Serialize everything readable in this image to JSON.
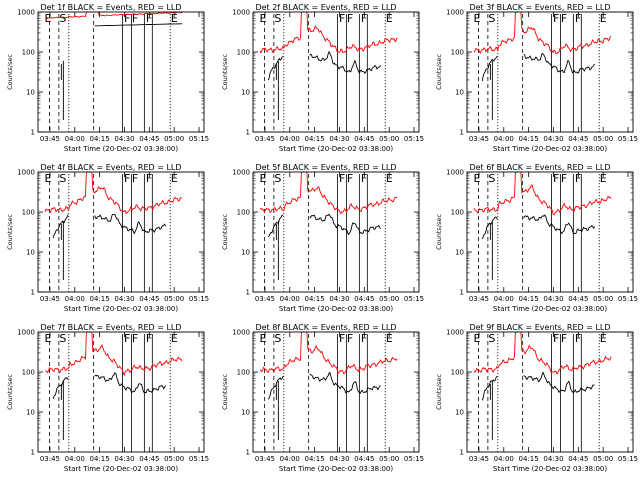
{
  "figure": {
    "ylabel": "Counts/sec",
    "xlabel": "Start Time (20-Dec-02 03:38:00)",
    "legend": "BLACK = Events, RED = LLD",
    "colors": {
      "events": "#000000",
      "lld": "#ff0000"
    }
  },
  "chart_data": [
    {
      "type": "line",
      "title": "Det 1f BLACK = Events, RED = LLD",
      "detector": "1f",
      "ylabel": "Counts/sec",
      "xlabel": "Start Time (20-Dec-02 03:38:00)",
      "yscale": "log",
      "ylim": [
        1,
        1000
      ],
      "yticks": [
        "1",
        "10",
        "100",
        "1000"
      ],
      "xlim": [
        3.63,
        5.3
      ],
      "xticks": [
        "03:45",
        "04:00",
        "04:15",
        "04:30",
        "04:45",
        "05:00",
        "05:15"
      ],
      "markers": [
        "E",
        "S",
        "F",
        "F",
        "F",
        "E"
      ],
      "series": [
        {
          "name": "Events",
          "color": "#000000"
        },
        {
          "name": "LLD",
          "color": "#ff0000"
        }
      ]
    },
    {
      "type": "line",
      "title": "Det 2f BLACK = Events, RED = LLD",
      "detector": "2f",
      "ylabel": "Counts/sec",
      "xlabel": "Start Time (20-Dec-02 03:38:00)",
      "yscale": "log",
      "ylim": [
        1,
        1000
      ],
      "yticks": [
        "1",
        "10",
        "100",
        "1000"
      ],
      "xlim": [
        3.63,
        5.3
      ],
      "xticks": [
        "03:45",
        "04:00",
        "04:15",
        "04:30",
        "04:45",
        "05:00",
        "05:15"
      ],
      "markers": [
        "E",
        "S",
        "F",
        "F",
        "F",
        "E"
      ],
      "series": [
        {
          "name": "Events",
          "color": "#000000"
        },
        {
          "name": "LLD",
          "color": "#ff0000"
        }
      ]
    },
    {
      "type": "line",
      "title": "Det 3f BLACK = Events, RED = LLD",
      "detector": "3f",
      "ylabel": "Counts/sec",
      "xlabel": "Start Time (20-Dec-02 03:38:00)",
      "yscale": "log",
      "ylim": [
        1,
        1000
      ],
      "yticks": [
        "1",
        "10",
        "100",
        "1000"
      ],
      "xlim": [
        3.63,
        5.3
      ],
      "xticks": [
        "03:45",
        "04:00",
        "04:15",
        "04:30",
        "04:45",
        "05:00",
        "05:15"
      ],
      "markers": [
        "E",
        "S",
        "F",
        "F",
        "F",
        "E"
      ],
      "series": [
        {
          "name": "Events",
          "color": "#000000"
        },
        {
          "name": "LLD",
          "color": "#ff0000"
        }
      ]
    },
    {
      "type": "line",
      "title": "Det 4f BLACK = Events, RED = LLD",
      "detector": "4f",
      "ylabel": "Counts/sec",
      "xlabel": "Start Time (20-Dec-02 03:38:00)",
      "yscale": "log",
      "ylim": [
        1,
        1000
      ],
      "yticks": [
        "1",
        "10",
        "100",
        "1000"
      ],
      "xlim": [
        3.63,
        5.3
      ],
      "xticks": [
        "03:45",
        "04:00",
        "04:15",
        "04:30",
        "04:45",
        "05:00",
        "05:15"
      ],
      "markers": [
        "E",
        "S",
        "F",
        "F",
        "F",
        "E"
      ],
      "series": [
        {
          "name": "Events",
          "color": "#000000"
        },
        {
          "name": "LLD",
          "color": "#ff0000"
        }
      ]
    },
    {
      "type": "line",
      "title": "Det 5f BLACK = Events, RED = LLD",
      "detector": "5f",
      "ylabel": "Counts/sec",
      "xlabel": "Start Time (20-Dec-02 03:38:00)",
      "yscale": "log",
      "ylim": [
        1,
        1000
      ],
      "yticks": [
        "1",
        "10",
        "100",
        "1000"
      ],
      "xlim": [
        3.63,
        5.3
      ],
      "xticks": [
        "03:45",
        "04:00",
        "04:15",
        "04:30",
        "04:45",
        "05:00",
        "05:15"
      ],
      "markers": [
        "E",
        "S",
        "F",
        "F",
        "F",
        "E"
      ],
      "series": [
        {
          "name": "Events",
          "color": "#000000"
        },
        {
          "name": "LLD",
          "color": "#ff0000"
        }
      ]
    },
    {
      "type": "line",
      "title": "Det 6f BLACK = Events, RED = LLD",
      "detector": "6f",
      "ylabel": "Counts/sec",
      "xlabel": "Start Time (20-Dec-02 03:38:00)",
      "yscale": "log",
      "ylim": [
        1,
        1000
      ],
      "yticks": [
        "1",
        "10",
        "100",
        "1000"
      ],
      "xlim": [
        3.63,
        5.3
      ],
      "xticks": [
        "03:45",
        "04:00",
        "04:15",
        "04:30",
        "04:45",
        "05:00",
        "05:15"
      ],
      "markers": [
        "E",
        "S",
        "F",
        "F",
        "F",
        "E"
      ],
      "series": [
        {
          "name": "Events",
          "color": "#000000"
        },
        {
          "name": "LLD",
          "color": "#ff0000"
        }
      ]
    },
    {
      "type": "line",
      "title": "Det 7f BLACK = Events, RED = LLD",
      "detector": "7f",
      "ylabel": "Counts/sec",
      "xlabel": "Start Time (20-Dec-02 03:38:00)",
      "yscale": "log",
      "ylim": [
        1,
        1000
      ],
      "yticks": [
        "1",
        "10",
        "100",
        "1000"
      ],
      "xlim": [
        3.63,
        5.3
      ],
      "xticks": [
        "03:45",
        "04:00",
        "04:15",
        "04:30",
        "04:45",
        "05:00",
        "05:15"
      ],
      "markers": [
        "E",
        "S",
        "F",
        "F",
        "F",
        "E"
      ],
      "series": [
        {
          "name": "Events",
          "color": "#000000"
        },
        {
          "name": "LLD",
          "color": "#ff0000"
        }
      ]
    },
    {
      "type": "line",
      "title": "Det 8f BLACK = Events, RED = LLD",
      "detector": "8f",
      "ylabel": "Counts/sec",
      "xlabel": "Start Time (20-Dec-02 03:38:00)",
      "yscale": "log",
      "ylim": [
        1,
        1000
      ],
      "yticks": [
        "1",
        "10",
        "100",
        "1000"
      ],
      "xlim": [
        3.63,
        5.3
      ],
      "xticks": [
        "03:45",
        "04:00",
        "04:15",
        "04:30",
        "04:45",
        "05:00",
        "05:15"
      ],
      "markers": [
        "E",
        "S",
        "F",
        "F",
        "F",
        "E"
      ],
      "series": [
        {
          "name": "Events",
          "color": "#000000"
        },
        {
          "name": "LLD",
          "color": "#ff0000"
        }
      ]
    },
    {
      "type": "line",
      "title": "Det 9f BLACK = Events, RED = LLD",
      "detector": "9f",
      "ylabel": "Counts/sec",
      "xlabel": "Start Time (20-Dec-02 03:38:00)",
      "yscale": "log",
      "ylim": [
        1,
        1000
      ],
      "yticks": [
        "1",
        "10",
        "100",
        "1000"
      ],
      "xlim": [
        3.63,
        5.3
      ],
      "xticks": [
        "03:45",
        "04:00",
        "04:15",
        "04:30",
        "04:45",
        "05:00",
        "05:15"
      ],
      "markers": [
        "E",
        "S",
        "F",
        "F",
        "F",
        "E"
      ],
      "series": [
        {
          "name": "Events",
          "color": "#000000"
        },
        {
          "name": "LLD",
          "color": "#ff0000"
        }
      ]
    }
  ]
}
